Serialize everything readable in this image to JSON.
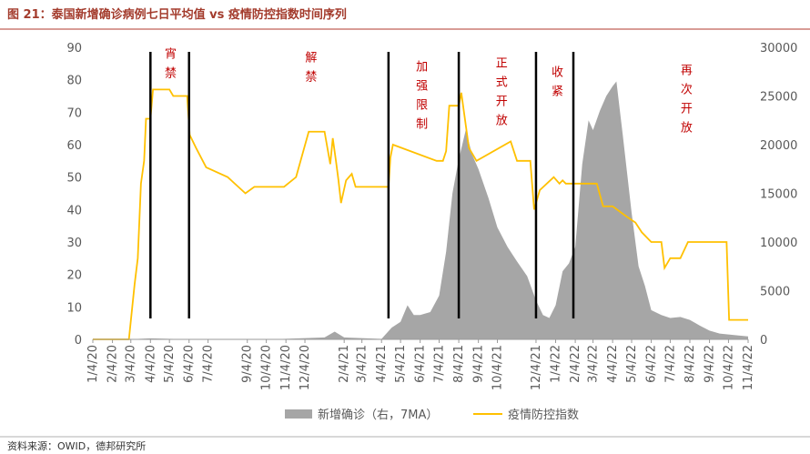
{
  "chart_data": {
    "type": "area-line",
    "title": "图 21：泰国新增确诊病例七日平均值 vs 疫情防控指数时间序列",
    "source": "资料来源：OWID，德邦研究所",
    "xlim": [
      "1/4/20",
      "11/4/22"
    ],
    "xticks": [
      "1/4/20",
      "2/4/20",
      "3/4/20",
      "4/4/20",
      "5/4/20",
      "6/4/20",
      "7/4/20",
      "9/4/20",
      "10/4/20",
      "11/4/20",
      "12/4/20",
      "2/4/21",
      "3/4/21",
      "4/4/21",
      "5/4/21",
      "6/4/21",
      "7/4/21",
      "8/4/21",
      "9/4/21",
      "10/4/21",
      "12/4/21",
      "1/4/22",
      "2/4/22",
      "3/4/22",
      "4/4/22",
      "5/4/22",
      "6/4/22",
      "7/4/22",
      "8/4/22",
      "9/4/22",
      "10/4/22",
      "11/4/22"
    ],
    "ylim": [
      0,
      90
    ],
    "yticks": [
      0,
      10,
      20,
      30,
      40,
      50,
      60,
      70,
      80,
      90
    ],
    "y2lim": [
      0,
      30000
    ],
    "y2ticks": [
      0,
      5000,
      10000,
      15000,
      20000,
      25000,
      30000
    ],
    "series": [
      {
        "name": "新增确诊（右，7MA）",
        "type": "area",
        "axis": "y2",
        "color": "#a6a6a6",
        "x": [
          "1/4/20",
          "2/28/20",
          "4/4/20",
          "5/24/20",
          "10/15/20",
          "1/4/21",
          "1/20/21",
          "2/4/21",
          "4/4/21",
          "4/20/21",
          "5/4/21",
          "5/15/21",
          "5/25/21",
          "6/4/21",
          "6/20/21",
          "7/4/21",
          "7/15/21",
          "7/25/21",
          "8/4/21",
          "8/15/21",
          "8/25/21",
          "9/4/21",
          "9/20/21",
          "10/4/21",
          "10/20/21",
          "11/4/21",
          "11/20/21",
          "12/4/21",
          "12/15/21",
          "12/25/21",
          "1/4/22",
          "1/15/22",
          "1/25/22",
          "2/4/22",
          "2/15/22",
          "2/25/22",
          "3/4/22",
          "3/15/22",
          "3/25/22",
          "4/4/22",
          "4/10/22",
          "4/20/22",
          "5/4/22",
          "5/15/22",
          "5/25/22",
          "6/4/22",
          "6/20/22",
          "7/4/22",
          "7/20/22",
          "8/4/22",
          "8/20/22",
          "9/4/22",
          "9/20/22",
          "10/4/22",
          "10/20/22",
          "11/4/22"
        ],
        "values": [
          0,
          0,
          100,
          20,
          10,
          200,
          800,
          200,
          50,
          1200,
          1800,
          3500,
          2500,
          2500,
          2800,
          4500,
          9000,
          15000,
          18500,
          21500,
          19000,
          17500,
          14500,
          11500,
          9500,
          8000,
          6500,
          4000,
          2500,
          2200,
          3500,
          7000,
          7800,
          9500,
          18000,
          22500,
          21500,
          23500,
          25000,
          26000,
          26500,
          21000,
          13000,
          7500,
          5500,
          3000,
          2500,
          2200,
          2300,
          2000,
          1400,
          900,
          600,
          500,
          400,
          300
        ]
      },
      {
        "name": "疫情防控指数",
        "type": "line",
        "color": "#ffc000",
        "x": [
          "1/4/20",
          "3/1/20",
          "3/10/20",
          "3/15/20",
          "3/20/20",
          "3/25/20",
          "3/28/20",
          "4/4/20",
          "4/8/20",
          "5/4/20",
          "5/10/20",
          "6/1/20",
          "6/5/20",
          "6/15/20",
          "7/1/20",
          "8/4/20",
          "9/1/20",
          "9/15/20",
          "11/1/20",
          "11/20/20",
          "12/10/20",
          "1/4/21",
          "1/13/21",
          "1/17/21",
          "1/22/21",
          "1/26/21",
          "1/30/21",
          "2/7/21",
          "2/16/21",
          "2/22/21",
          "4/15/21",
          "4/18/21",
          "4/22/21",
          "6/30/21",
          "7/10/21",
          "7/15/21",
          "7/20/21",
          "8/4/21",
          "8/8/21",
          "8/20/21",
          "9/1/21",
          "10/25/21",
          "11/4/21",
          "11/25/21",
          "12/1/21",
          "12/10/21",
          "1/1/22",
          "1/10/22",
          "1/15/22",
          "1/20/22",
          "2/20/22",
          "3/10/22",
          "3/20/22",
          "4/4/22",
          "4/25/22",
          "5/10/22",
          "5/20/22",
          "6/4/22",
          "6/20/22",
          "6/25/22",
          "7/4/22",
          "7/20/22",
          "8/1/22",
          "10/1/22",
          "10/5/22",
          "11/4/22"
        ],
        "values": [
          0,
          0,
          17,
          25,
          48,
          55,
          68,
          68,
          77,
          77,
          75,
          75,
          63,
          59,
          53,
          50,
          45,
          47,
          47,
          50,
          64,
          64,
          54,
          62,
          55,
          49,
          42,
          49,
          51,
          47,
          47,
          56,
          60,
          55,
          55,
          58,
          72,
          72,
          76,
          59,
          55,
          61,
          55,
          55,
          40,
          46,
          50,
          48,
          49,
          48,
          48,
          48,
          41,
          41,
          38,
          36,
          33,
          30,
          30,
          22,
          25,
          25,
          30,
          30,
          6,
          6
        ]
      }
    ],
    "event_lines": [
      "4/4/20",
      "6/4/20",
      "4/15/21",
      "8/4/21",
      "12/4/21",
      "2/1/22"
    ],
    "annotations": [
      {
        "text": "宵禁",
        "x": "5/3/20"
      },
      {
        "text": "解禁",
        "x": "12/11/20"
      },
      {
        "text": "加强限制",
        "x": "6/4/21"
      },
      {
        "text": "正式开放",
        "x": "10/8/21"
      },
      {
        "text": "收紧",
        "x": "1/4/22"
      },
      {
        "text": "再次开放",
        "x": "7/27/22"
      }
    ],
    "grid": false
  }
}
